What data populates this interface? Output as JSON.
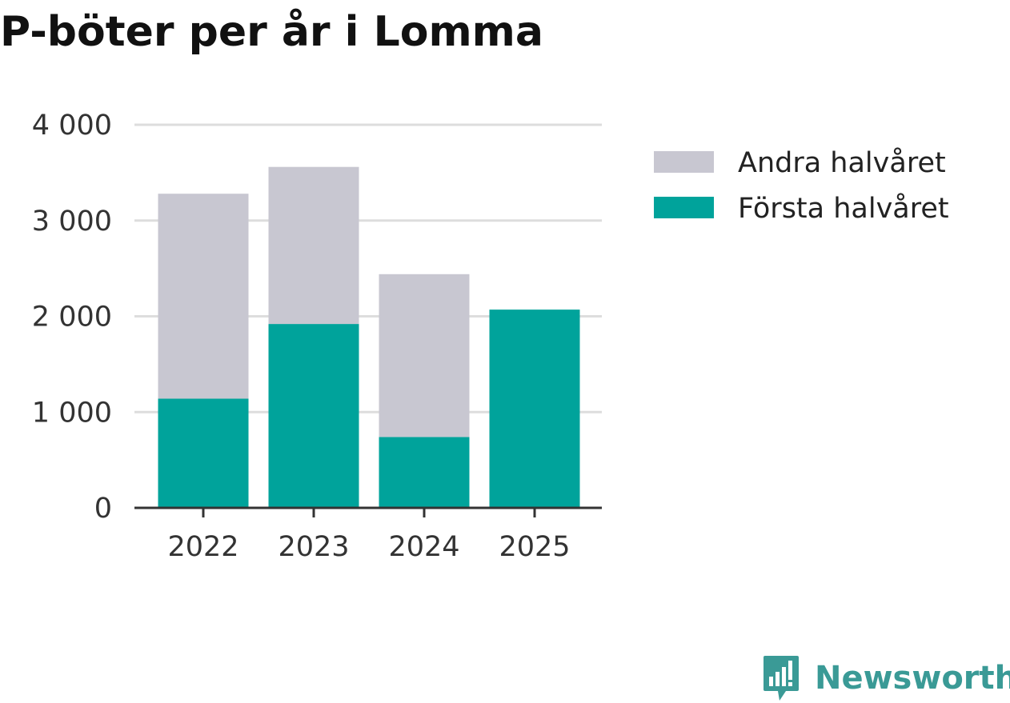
{
  "colors": {
    "first_half": "#00a39b",
    "second_half": "#c8c7d1",
    "grid": "#dddddd",
    "axis": "#333333",
    "brand": "#3a9a96"
  },
  "brand": {
    "name": "Newsworthy",
    "icon": "newsworthy-logo-icon"
  },
  "chart_data": {
    "type": "bar",
    "stacked": true,
    "title": "P-böter per år i Lomma",
    "xlabel": "",
    "ylabel": "",
    "categories": [
      "2022",
      "2023",
      "2024",
      "2025"
    ],
    "series": [
      {
        "name": "Första halvåret",
        "values": [
          1140,
          1920,
          740,
          2070
        ]
      },
      {
        "name": "Andra halvåret",
        "values": [
          2140,
          1640,
          1700,
          0
        ]
      }
    ],
    "legend_order": [
      "Andra halvåret",
      "Första halvåret"
    ],
    "ylim": [
      0,
      4000
    ],
    "yticks": [
      0,
      1000,
      2000,
      3000,
      4000
    ],
    "ytick_labels": [
      "0",
      "1 000",
      "2 000",
      "3 000",
      "4 000"
    ],
    "grid": true,
    "legend_position": "right"
  }
}
